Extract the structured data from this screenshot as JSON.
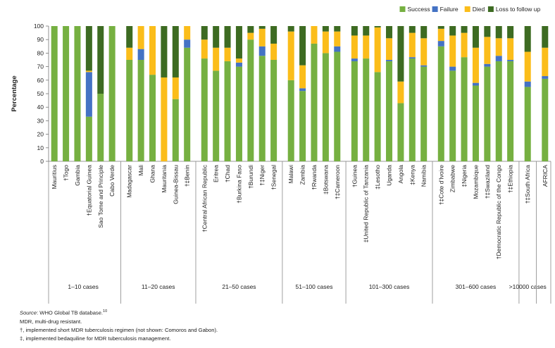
{
  "chart_data": {
    "type": "bar",
    "stacked": true,
    "ylabel": "Percentage",
    "ylim": [
      0,
      100
    ],
    "yticks": [
      0,
      10,
      20,
      30,
      40,
      50,
      60,
      70,
      80,
      90,
      100
    ],
    "legend_position": "top-right",
    "series": [
      {
        "name": "Success",
        "color": "#76b041"
      },
      {
        "name": "Failure",
        "color": "#4472c4"
      },
      {
        "name": "Died",
        "color": "#fbbd1a"
      },
      {
        "name": "Loss to follow up",
        "color": "#3d6b22"
      }
    ],
    "groups": [
      {
        "label": "1–10 cases",
        "bars": [
          {
            "name": "Mauritius",
            "values": [
              100,
              0,
              0,
              0
            ]
          },
          {
            "name": "†Togo",
            "values": [
              100,
              0,
              0,
              0
            ]
          },
          {
            "name": "Gambia",
            "values": [
              100,
              0,
              0,
              0
            ]
          },
          {
            "name": "†Equatorial Guinea",
            "values": [
              33,
              33,
              1,
              33
            ]
          },
          {
            "name": "Sao Tome and Principle",
            "values": [
              50,
              0,
              0,
              50
            ]
          },
          {
            "name": "Cabo Verde",
            "values": [
              100,
              0,
              0,
              0
            ]
          }
        ]
      },
      {
        "label": "11–20 cases",
        "bars": [
          {
            "name": "Madagascar",
            "values": [
              75,
              0,
              9,
              16
            ]
          },
          {
            "name": "Mali",
            "values": [
              75,
              8,
              17,
              0
            ]
          },
          {
            "name": "Ghana",
            "values": [
              64,
              0,
              36,
              0
            ]
          },
          {
            "name": "Mauritania",
            "values": [
              0,
              0,
              62,
              38
            ]
          },
          {
            "name": "Guinea-Bissau",
            "values": [
              46,
              0,
              16,
              38
            ]
          },
          {
            "name": "†‡Benin",
            "values": [
              84,
              6,
              10,
              0
            ]
          }
        ]
      },
      {
        "label": "21–50 cases",
        "bars": [
          {
            "name": "†Central African Republic",
            "values": [
              76,
              0,
              14,
              10
            ]
          },
          {
            "name": "Eritrea",
            "values": [
              67,
              0,
              17,
              16
            ]
          },
          {
            "name": "†Chad",
            "values": [
              74,
              0,
              10,
              16
            ]
          },
          {
            "name": "†Burkina Faso",
            "values": [
              70,
              3,
              3,
              24
            ]
          },
          {
            "name": "†Burundi",
            "values": [
              90,
              0,
              5,
              5
            ]
          },
          {
            "name": "†‡Niger",
            "values": [
              78,
              7,
              13,
              2
            ]
          },
          {
            "name": "†Senegal",
            "values": [
              75,
              0,
              12,
              13
            ]
          }
        ]
      },
      {
        "label": "51–100 cases",
        "bars": [
          {
            "name": "Malawi",
            "values": [
              60,
              0,
              36,
              4
            ]
          },
          {
            "name": "Zambia",
            "values": [
              52,
              2,
              17,
              29
            ]
          },
          {
            "name": "†Rwanda",
            "values": [
              87,
              0,
              13,
              0
            ]
          },
          {
            "name": "‡Botswana",
            "values": [
              80,
              0,
              16,
              4
            ]
          },
          {
            "name": "†‡Cameroon",
            "values": [
              81,
              4,
              11,
              4
            ]
          }
        ]
      },
      {
        "label": "101–300 cases",
        "bars": [
          {
            "name": "†Guinea",
            "values": [
              74,
              2,
              17,
              7
            ]
          },
          {
            "name": "‡United Republic of Tanzania",
            "values": [
              76,
              0,
              17,
              7
            ]
          },
          {
            "name": "‡Lesotho",
            "values": [
              66,
              0,
              33,
              1
            ]
          },
          {
            "name": "Uganda",
            "values": [
              74,
              1,
              16,
              9
            ]
          },
          {
            "name": "Angola",
            "values": [
              43,
              0,
              16,
              41
            ]
          },
          {
            "name": "‡Kenya",
            "values": [
              76,
              1,
              18,
              5
            ]
          },
          {
            "name": "Namibia",
            "values": [
              70,
              1,
              20,
              9
            ]
          }
        ]
      },
      {
        "label": "301–600 cases",
        "bars": [
          {
            "name": "†‡Cote d’Ivoire",
            "values": [
              85,
              4,
              9,
              2
            ]
          },
          {
            "name": "Zimbabwe",
            "values": [
              67,
              3,
              23,
              7
            ]
          },
          {
            "name": "‡Nigeria",
            "values": [
              77,
              0,
              18,
              5
            ]
          },
          {
            "name": "Mozambique",
            "values": [
              56,
              2,
              26,
              16
            ]
          },
          {
            "name": "†‡Swaziland",
            "values": [
              70,
              2,
              20,
              8
            ]
          },
          {
            "name": "†Democratic Republic of the Congo",
            "values": [
              74,
              4,
              13,
              9
            ]
          },
          {
            "name": "†‡Ethiopia",
            "values": [
              74,
              1,
              16,
              9
            ]
          }
        ]
      },
      {
        "label": ">10000 cases",
        "bars": [
          {
            "name": "†‡South Africa",
            "values": [
              55,
              4,
              22,
              19
            ]
          }
        ]
      },
      {
        "label": "",
        "bars": [
          {
            "name": "AFRICA",
            "values": [
              61,
              2,
              21,
              16
            ]
          }
        ]
      }
    ]
  },
  "notes": {
    "source_label": "Source",
    "source_text": ": WHO Global TB database.",
    "source_ref": "10",
    "mdr": "MDR, multi-drug resistant.",
    "dagger": "†, implemented short MDR tuberculosis regimen (not shown: Comoros and Gabon).",
    "ddagger": "‡, implemented bedaquiline for MDR tuberculosis management."
  }
}
